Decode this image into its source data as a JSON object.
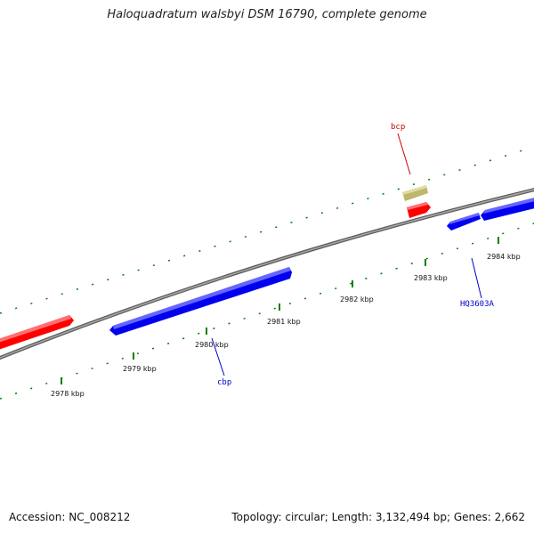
{
  "header": {
    "title": "Haloquadratum walsbyi DSM 16790, complete genome"
  },
  "footer": {
    "accession": "Accession: NC_008212",
    "summary": "Topology: circular; Length: 3,132,494 bp; Genes: 2,662"
  },
  "map": {
    "tick_labels": [
      {
        "kbp": 2978,
        "text": "2978 kbp"
      },
      {
        "kbp": 2979,
        "text": "2979 kbp"
      },
      {
        "kbp": 2980,
        "text": "2980 kbp"
      },
      {
        "kbp": 2981,
        "text": "2981 kbp"
      },
      {
        "kbp": 2982,
        "text": "2982 kbp"
      },
      {
        "kbp": 2983,
        "text": "2983 kbp"
      },
      {
        "kbp": 2984,
        "text": "2984 kbp"
      }
    ],
    "gene_labels": [
      {
        "name": "bcp",
        "color": "#cc0000"
      },
      {
        "name": "cbp",
        "color": "#0000cc"
      },
      {
        "name": "HQ3603A",
        "color": "#0000cc"
      }
    ],
    "colors": {
      "forward_gene": "#ff0000",
      "reverse_gene": "#0000ff",
      "other_gene": "#bdb76b",
      "backbone": "#808080",
      "ticks": "#008000"
    }
  }
}
